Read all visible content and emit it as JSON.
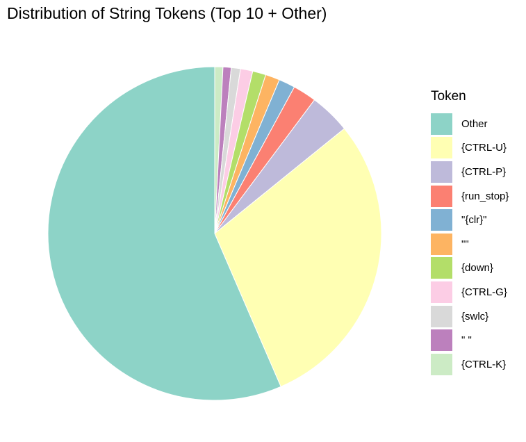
{
  "chart_data": {
    "type": "pie",
    "title": "Distribution of String Tokens (Top 10 + Other)",
    "legend_title": "Token",
    "legend_position": "right",
    "slices": [
      {
        "label": "Other",
        "value": 57.0,
        "color": "#8DD3C7"
      },
      {
        "label": "{CTRL-U}",
        "value": 29.6,
        "color": "#FFFFB3"
      },
      {
        "label": "{CTRL-P}",
        "value": 4.0,
        "color": "#BEBADA"
      },
      {
        "label": "{run_stop}",
        "value": 2.3,
        "color": "#FB8072"
      },
      {
        "label": "\"{clr}\"",
        "value": 1.6,
        "color": "#80B1D3"
      },
      {
        "label": "\"\"",
        "value": 1.4,
        "color": "#FDB462"
      },
      {
        "label": "{down}",
        "value": 1.3,
        "color": "#B3DE69"
      },
      {
        "label": "{CTRL-G}",
        "value": 1.2,
        "color": "#FCCDE5"
      },
      {
        "label": "{swlc}",
        "value": 0.9,
        "color": "#D9D9D9"
      },
      {
        "label": "\" \"",
        "value": 0.8,
        "color": "#BC80BD"
      },
      {
        "label": "{CTRL-K}",
        "value": 0.8,
        "color": "#CCEBC5"
      }
    ]
  }
}
